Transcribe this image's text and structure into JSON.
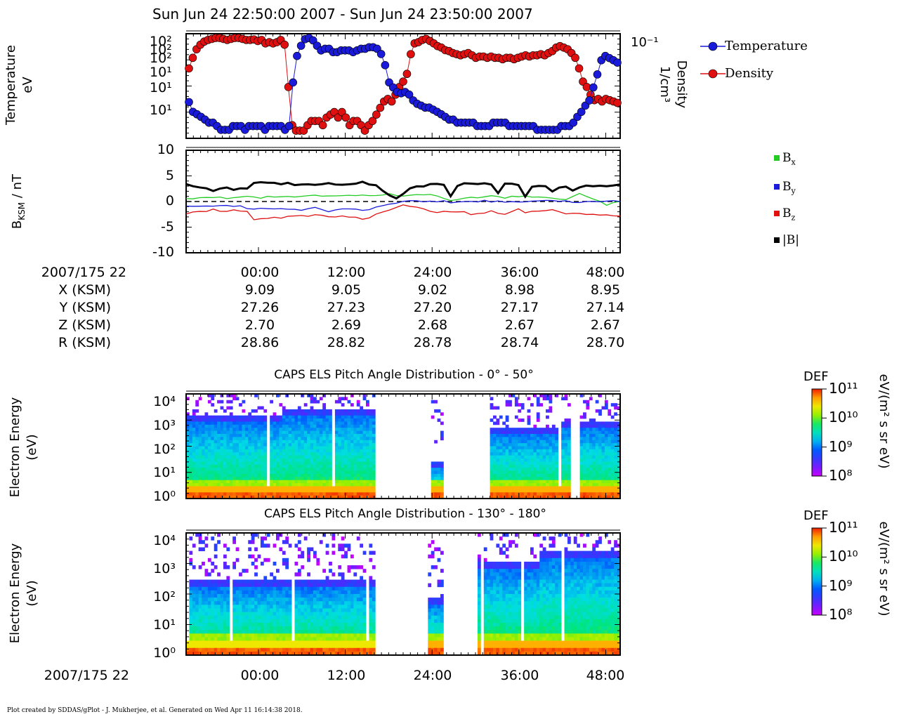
{
  "header": {
    "title": "Sun Jun 24 22:50:00 2007 - Sun Jun 24 23:50:00 2007"
  },
  "footer": "Plot created by SDDAS/gPlot - J. Mukherjee, et al.  Generated on Wed Apr 11 16:14:38 2018.",
  "colors": {
    "temperature": "#1a1adb",
    "density": "#e01010",
    "bx": "#22cc22",
    "by": "#1a1adb",
    "bz": "#e01010",
    "btot": "#000000"
  },
  "chart_data": [
    {
      "type": "scatter",
      "ylabel": "Temperature\neV",
      "ylabel_line1": "Temperature",
      "ylabel_line2": "eV",
      "ylabel_right_line1": "Density",
      "ylabel_right_line2": "1/cm³",
      "left_tick_labels": [
        "10²",
        "10²",
        "10²",
        "10¹",
        "10¹",
        "10¹"
      ],
      "right_tick_labels": [
        "10⁻¹"
      ],
      "legend_position": "right",
      "series": [
        {
          "name": "Temperature",
          "values": [
            19,
            14,
            13,
            12,
            11,
            10,
            10,
            9,
            8,
            8,
            8,
            9,
            9,
            9,
            8,
            9,
            9,
            9,
            9,
            8,
            9,
            9,
            9,
            9,
            8,
            9,
            35,
            80,
            110,
            135,
            140,
            130,
            110,
            95,
            100,
            100,
            90,
            90,
            95,
            95,
            95,
            90,
            95,
            100,
            100,
            105,
            105,
            100,
            85,
            60,
            35,
            30,
            26,
            25,
            26,
            24,
            20,
            18,
            17,
            16,
            16,
            15,
            14,
            13,
            12,
            11,
            11,
            10,
            10,
            10,
            10,
            10,
            9,
            9,
            9,
            9,
            10,
            10,
            10,
            10,
            9,
            9,
            9,
            9,
            9,
            9,
            9,
            8,
            8,
            8,
            8,
            8,
            8,
            9,
            9,
            9,
            10,
            12,
            14,
            17,
            20,
            30,
            45,
            70,
            80,
            75,
            70,
            65
          ]
        },
        {
          "name": "Density",
          "values": [
            0.08,
            0.14,
            0.22,
            0.28,
            0.33,
            0.36,
            0.38,
            0.4,
            0.4,
            0.38,
            0.36,
            0.38,
            0.4,
            0.4,
            0.38,
            0.36,
            0.36,
            0.37,
            0.34,
            0.36,
            0.3,
            0.32,
            0.3,
            0.32,
            0.36,
            0.28,
            0.03,
            0.004,
            0.003,
            0.003,
            0.003,
            0.004,
            0.005,
            0.005,
            0.005,
            0.004,
            0.006,
            0.007,
            0.008,
            0.006,
            0.008,
            0.006,
            0.004,
            0.005,
            0.005,
            0.004,
            0.003,
            0.004,
            0.005,
            0.007,
            0.01,
            0.014,
            0.016,
            0.014,
            0.02,
            0.03,
            0.04,
            0.06,
            0.17,
            0.3,
            0.32,
            0.36,
            0.38,
            0.34,
            0.3,
            0.26,
            0.24,
            0.21,
            0.2,
            0.18,
            0.17,
            0.16,
            0.17,
            0.18,
            0.16,
            0.14,
            0.15,
            0.15,
            0.14,
            0.15,
            0.14,
            0.14,
            0.13,
            0.14,
            0.14,
            0.13,
            0.14,
            0.15,
            0.16,
            0.15,
            0.16,
            0.16,
            0.17,
            0.16,
            0.18,
            0.2,
            0.24,
            0.26,
            0.24,
            0.22,
            0.18,
            0.14,
            0.08,
            0.04,
            0.03,
            0.02,
            0.015,
            0.016,
            0.014,
            0.016,
            0.015,
            0.014,
            0.013
          ]
        }
      ]
    },
    {
      "type": "line",
      "ylabel": "B_KSM / nT",
      "ylabel_main": "B",
      "ylabel_sub": "KSM",
      "ylabel_tail": " / nT",
      "ylim": [
        -10,
        10
      ],
      "y_tick_labels": [
        "10",
        "5",
        "0",
        "-5",
        "-10"
      ],
      "y_ticks": [
        10,
        5,
        0,
        -5,
        -10
      ],
      "legend_position": "right",
      "series": [
        {
          "name": "Bx",
          "name_main": "B",
          "name_sub": "x",
          "values": [
            0.5,
            0.6,
            0.7,
            0.6,
            0.7,
            0.8,
            0.7,
            0.6,
            0.8,
            0.9,
            0.8,
            0.7,
            0.9,
            1.0,
            0.9,
            1.1,
            1.0,
            0.9,
            1.0,
            1.1,
            1.2,
            1.1,
            1.0,
            1.2,
            1.3,
            1.2,
            1.1,
            1.0,
            1.2,
            1.3,
            1.4,
            1.3,
            1.2,
            1.3,
            1.4,
            1.3,
            1.2,
            1.1,
            0.5,
            0.3,
            0.4,
            0.5,
            0.7,
            0.8,
            0.9,
            1.0,
            0.9,
            0.8,
            1.0,
            1.1,
            1.0,
            0.9,
            0.8,
            0.9,
            0.7,
            0.5,
            0.4,
            0.8,
            1.6,
            1.2,
            0.6,
            0.2,
            -0.8,
            0.0,
            0.1
          ]
        },
        {
          "name": "By",
          "name_main": "B",
          "name_sub": "y",
          "values": [
            -0.8,
            -0.9,
            -0.8,
            -1.0,
            -0.9,
            -0.8,
            -0.9,
            -1.0,
            -0.9,
            -1.2,
            -1.5,
            -1.3,
            -1.4,
            -1.5,
            -1.3,
            -1.5,
            -1.7,
            -1.6,
            -1.4,
            -1.3,
            -1.6,
            -1.8,
            -1.7,
            -1.5,
            -1.4,
            -1.6,
            -1.8,
            -1.5,
            -1.2,
            -1.0,
            -0.5,
            -0.2,
            0.0,
            0.1,
            0.0,
            -0.1,
            0.0,
            0.1,
            0.0,
            -0.1,
            0.0,
            0.0,
            -0.1,
            0.0,
            0.1,
            0.0,
            0.0,
            -0.1,
            0.0,
            0.1,
            0.0,
            0.0,
            0.0,
            0.1,
            0.0,
            0.0,
            0.0,
            -0.1,
            0.0,
            0.1,
            0.0,
            -0.1,
            0.0,
            0.1,
            0.0
          ]
        },
        {
          "name": "Bz",
          "name_main": "B",
          "name_sub": "z",
          "values": [
            -2.5,
            -2.2,
            -2.0,
            -1.8,
            -1.5,
            -1.8,
            -2.0,
            -1.6,
            -1.8,
            -2.0,
            -3.5,
            -3.3,
            -3.2,
            -3.0,
            -3.1,
            -2.9,
            -3.0,
            -2.8,
            -2.9,
            -2.7,
            -2.8,
            -2.9,
            -3.0,
            -2.8,
            -2.9,
            -3.2,
            -3.4,
            -3.0,
            -2.5,
            -2.0,
            -1.5,
            -1.0,
            -0.5,
            -0.8,
            -1.2,
            -1.5,
            -2.0,
            -2.1,
            -1.8,
            -2.0,
            -2.2,
            -1.9,
            -2.4,
            -2.5,
            -2.2,
            -2.0,
            -2.2,
            -2.4,
            -2.0,
            -1.6,
            -2.1,
            -2.0,
            -1.8,
            -1.9,
            -1.5,
            -2.0,
            -2.5,
            -2.3,
            -2.4,
            -2.6,
            -2.4,
            -2.5,
            -2.7,
            -2.6,
            -2.7
          ]
        },
        {
          "name": "|B|",
          "name_main": "|B|",
          "name_sub": "",
          "values": [
            3.4,
            3.0,
            2.8,
            2.5,
            2.0,
            2.5,
            2.8,
            2.3,
            2.6,
            2.5,
            3.7,
            3.6,
            3.5,
            3.6,
            3.4,
            3.5,
            3.3,
            3.5,
            3.4,
            3.3,
            3.2,
            3.4,
            3.5,
            3.3,
            3.4,
            3.6,
            3.7,
            3.4,
            3.0,
            2.0,
            1.0,
            0.5,
            1.5,
            2.5,
            2.8,
            3.0,
            3.3,
            3.4,
            3.2,
            1.0,
            3.2,
            3.4,
            3.4,
            3.6,
            3.5,
            3.4,
            1.5,
            3.4,
            3.3,
            3.2,
            0.8,
            3.0,
            3.2,
            3.1,
            1.8,
            2.6,
            3.0,
            2.2,
            2.6,
            3.0,
            2.9,
            3.0,
            3.1,
            3.0,
            3.2
          ]
        }
      ]
    },
    {
      "type": "heatmap",
      "title": "CAPS ELS Pitch Angle Distribution - 0° - 50°",
      "ylabel_line1": "Electron Energy",
      "ylabel_line2": "(eV)",
      "y_tick_labels": [
        "10⁴",
        "10³",
        "10²",
        "10¹",
        "10⁰"
      ],
      "colorbar": {
        "title": "DEF",
        "units": "eV/(m² s sr eV)",
        "tick_labels": [
          "10¹¹",
          "10¹⁰",
          "10⁹",
          "10⁸"
        ],
        "range": [
          8,
          11
        ]
      }
    },
    {
      "type": "heatmap",
      "title": "CAPS ELS Pitch Angle Distribution - 130° - 180°",
      "ylabel_line1": "Electron Energy",
      "ylabel_line2": "(eV)",
      "y_tick_labels": [
        "10⁴",
        "10³",
        "10²",
        "10¹",
        "10⁰"
      ],
      "colorbar": {
        "title": "DEF",
        "units": "eV/(m² s sr eV)",
        "tick_labels": [
          "10¹¹",
          "10¹⁰",
          "10⁹",
          "10⁸"
        ],
        "range": [
          8,
          11
        ]
      }
    }
  ],
  "time_axis": {
    "start_label": "2007/175 22",
    "ticks": [
      "00:00",
      "12:00",
      "24:00",
      "36:00",
      "48:00"
    ]
  },
  "orbit_table": {
    "rows": [
      {
        "label": "X (KSM)",
        "values": [
          "9.09",
          "9.05",
          "9.02",
          "8.98",
          "8.95"
        ]
      },
      {
        "label": "Y (KSM)",
        "values": [
          "27.26",
          "27.23",
          "27.20",
          "27.17",
          "27.14"
        ]
      },
      {
        "label": "Z (KSM)",
        "values": [
          "2.70",
          "2.69",
          "2.68",
          "2.67",
          "2.67"
        ]
      },
      {
        "label": "R (KSM)",
        "values": [
          "28.86",
          "28.82",
          "28.78",
          "28.74",
          "28.70"
        ]
      }
    ]
  }
}
